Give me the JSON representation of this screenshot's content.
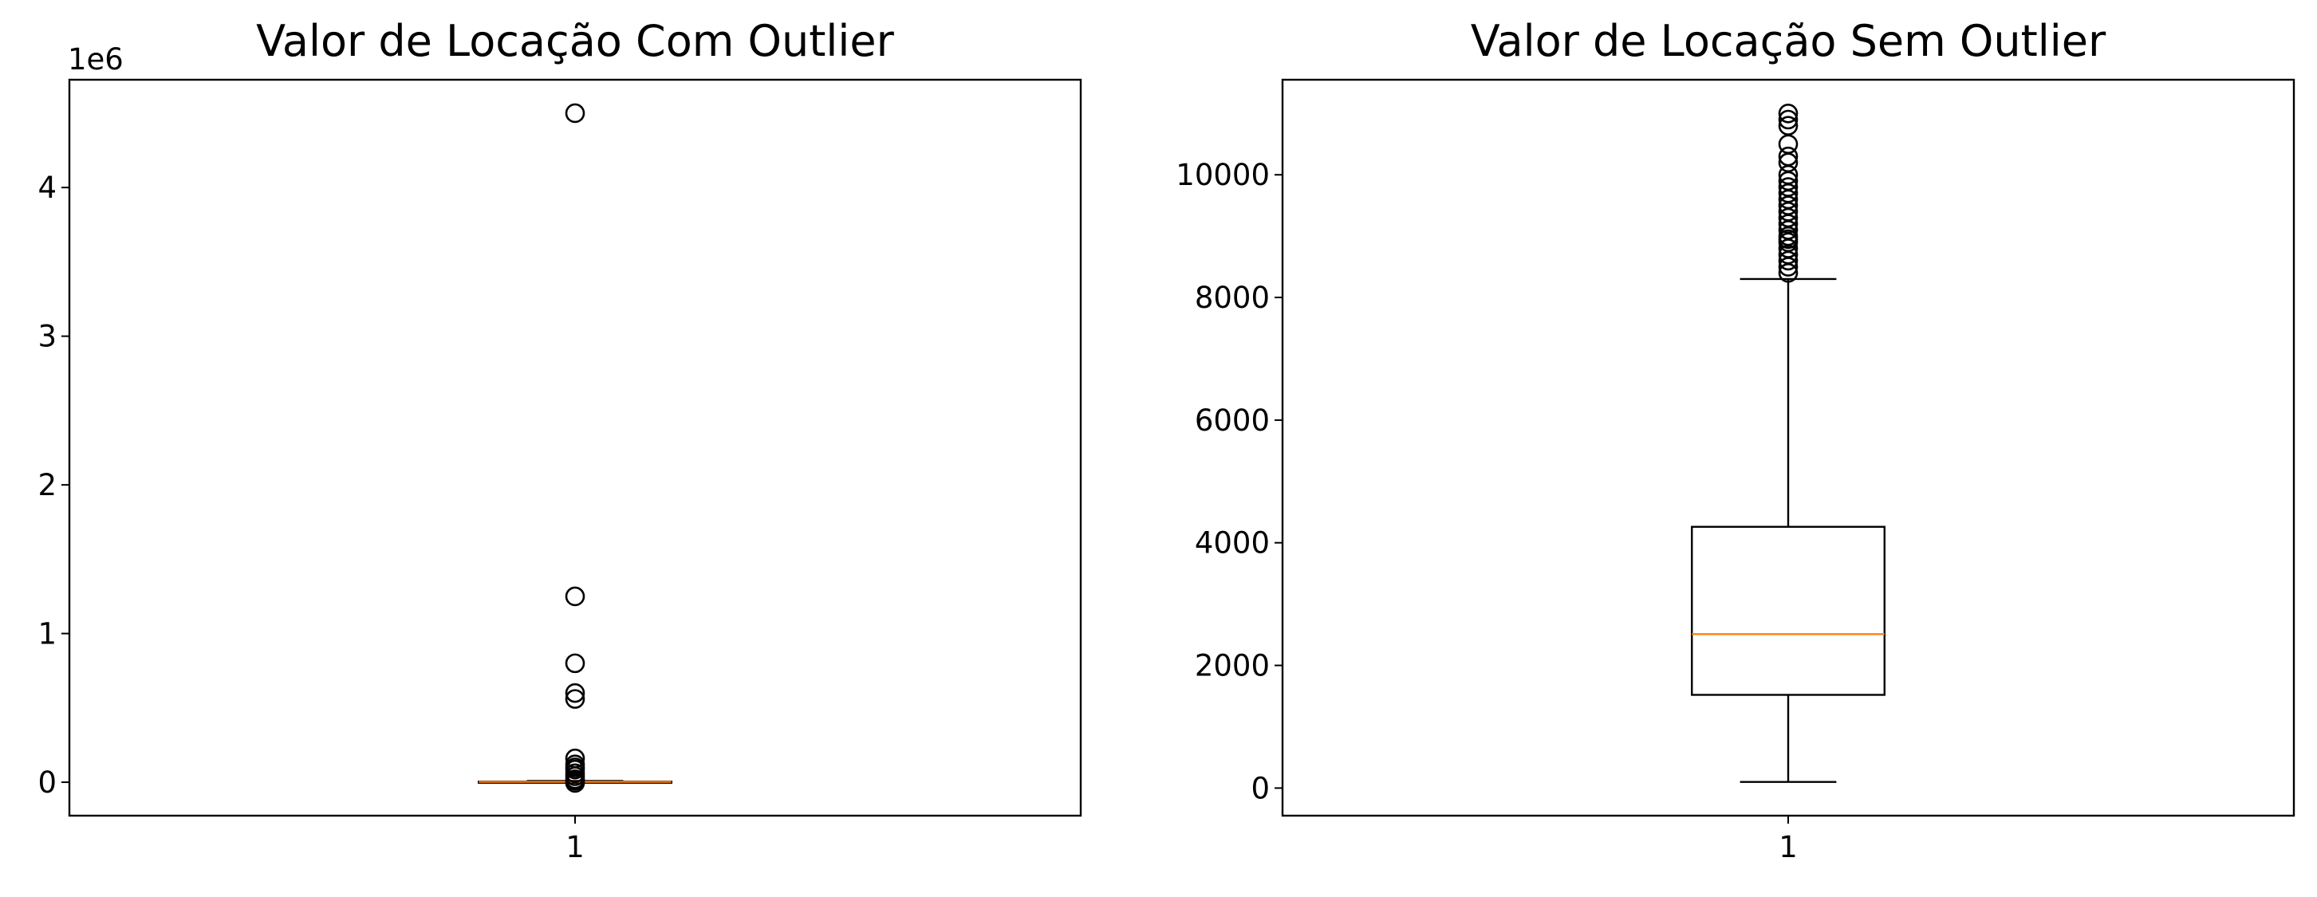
{
  "chart_data": [
    {
      "type": "box",
      "title": "Valor de Locação Com Outlier",
      "xlabel": "",
      "ylabel": "",
      "categories": [
        "1"
      ],
      "x_tick_labels": [
        "1"
      ],
      "y_offset_label": "1e6",
      "y_scale_factor": 1000000,
      "yticks": [
        0,
        1,
        2,
        3,
        4
      ],
      "y_tick_labels": [
        "0",
        "1",
        "2",
        "3",
        "4"
      ],
      "ylim": [
        -0.225,
        4.725
      ],
      "xlim": [
        0.5,
        1.5
      ],
      "grid": false,
      "series": [
        {
          "whisker_low": 0.0,
          "q1": 0.0015,
          "median": 0.0025,
          "q3": 0.0043,
          "whisker_high": 0.0083,
          "fliers": [
            4.5,
            1.25,
            0.8,
            0.6,
            0.56,
            0.16,
            0.12,
            0.1,
            0.085,
            0.06,
            0.04,
            0.02,
            0.01,
            -0.005
          ]
        }
      ],
      "colors": {
        "box": "#000000",
        "median": "#ff7f0e",
        "flier_edge": "#000000"
      }
    },
    {
      "type": "box",
      "title": "Valor de Locação Sem Outlier",
      "xlabel": "",
      "ylabel": "",
      "categories": [
        "1"
      ],
      "x_tick_labels": [
        "1"
      ],
      "yticks": [
        0,
        2000,
        4000,
        6000,
        8000,
        10000
      ],
      "y_tick_labels": [
        "0",
        "2000",
        "4000",
        "6000",
        "8000",
        "10000"
      ],
      "ylim": [
        -450,
        11550
      ],
      "xlim": [
        0.5,
        1.5
      ],
      "grid": false,
      "series": [
        {
          "whisker_low": 100,
          "q1": 1520,
          "median": 2510,
          "q3": 4260,
          "whisker_high": 8300,
          "fliers": [
            11000,
            10900,
            10800,
            10500,
            10300,
            10200,
            10000,
            9900,
            9800,
            9700,
            9600,
            9500,
            9400,
            9300,
            9200,
            9100,
            9000,
            8950,
            8900,
            8800,
            8700,
            8600,
            8500,
            8400
          ]
        }
      ],
      "colors": {
        "box": "#000000",
        "median": "#ff7f0e",
        "flier_edge": "#000000"
      }
    }
  ]
}
